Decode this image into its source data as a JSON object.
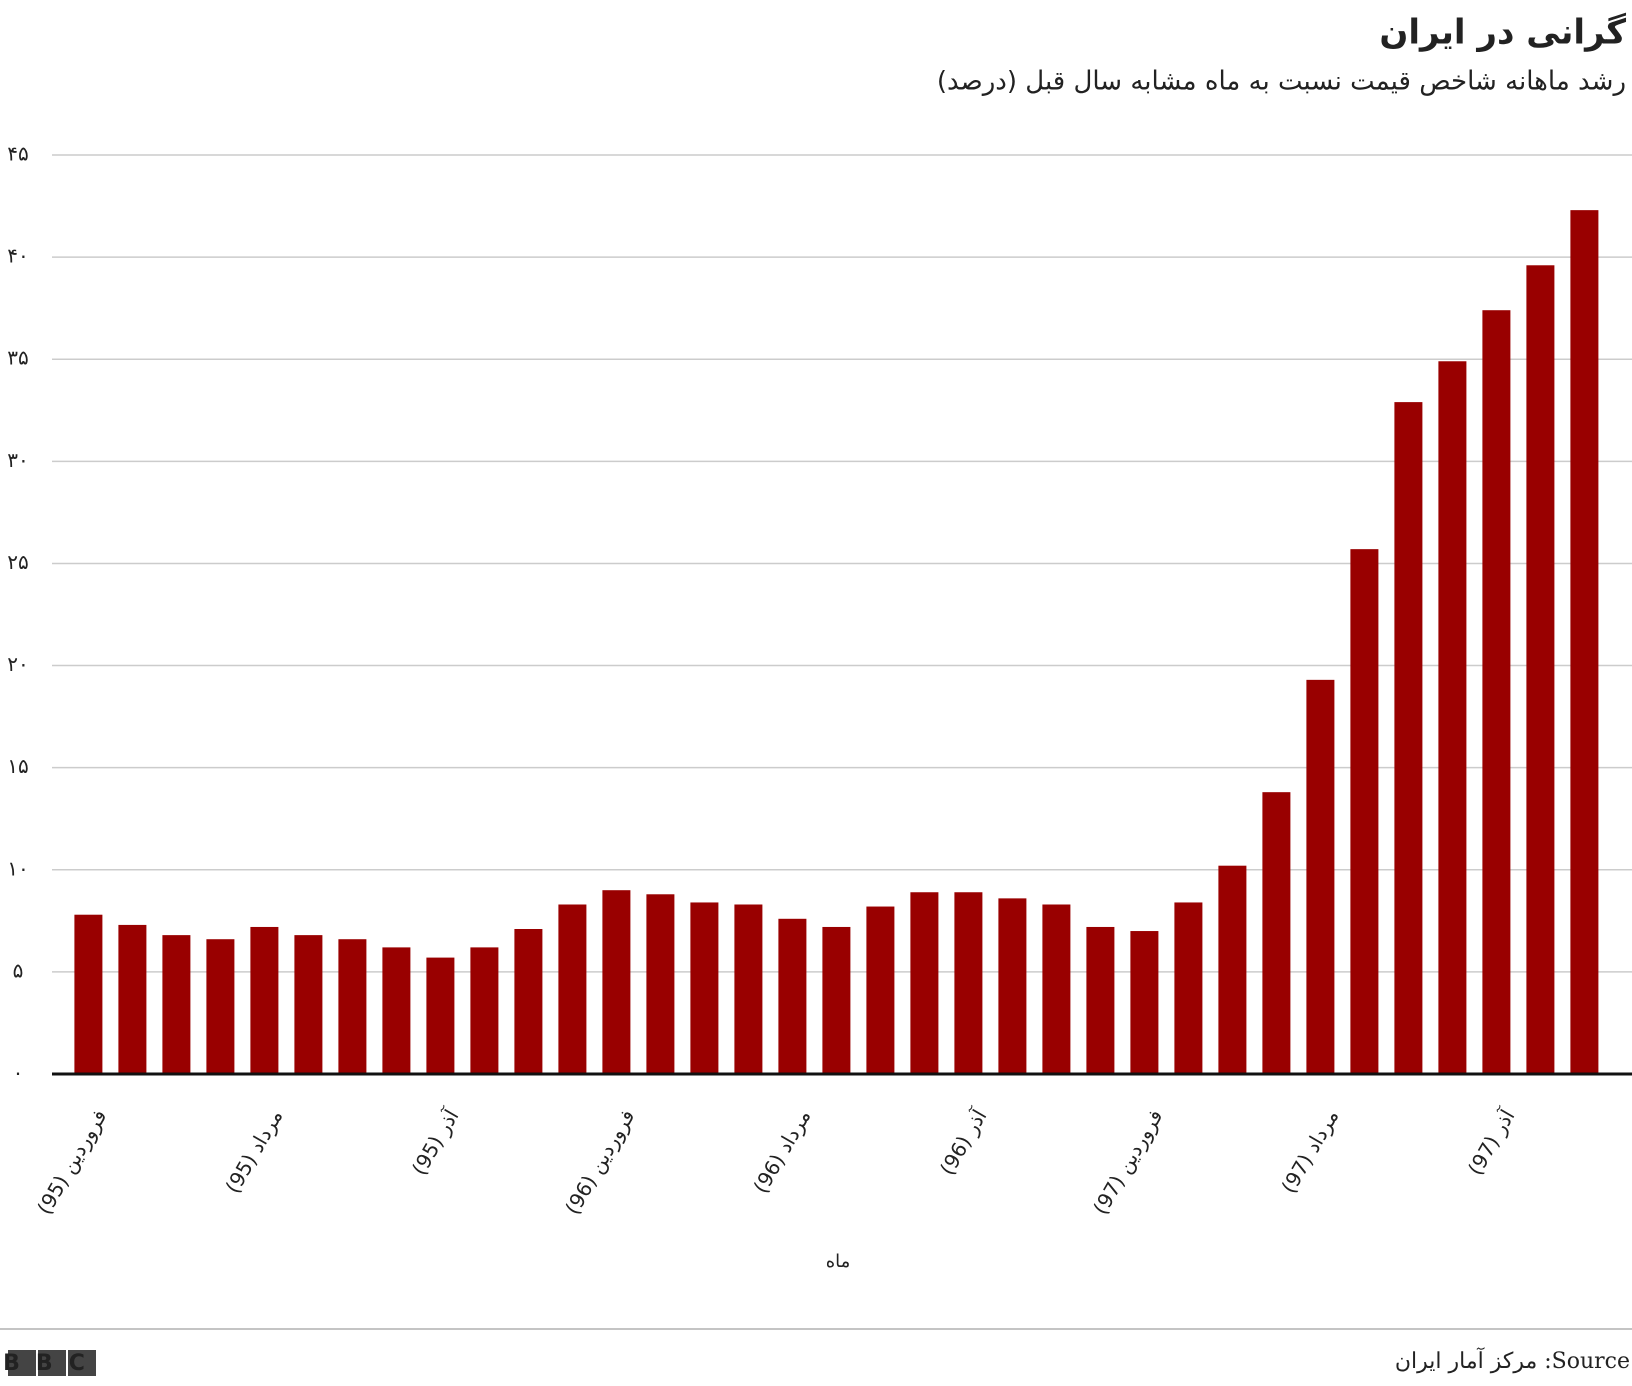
{
  "chart_data": {
    "type": "bar",
    "title": "گرانی در ایران",
    "subtitle": "رشد ماهانه شاخص قیمت نسبت به ماه مشابه سال قبل (درصد)",
    "x_label": "ماه",
    "categories": [
      "فروردین (95)",
      null,
      null,
      null,
      "مرداد (95)",
      null,
      null,
      null,
      "آذر (95)",
      null,
      null,
      null,
      "فروردین (96)",
      null,
      null,
      null,
      "مرداد (96)",
      null,
      null,
      null,
      "آذر (96)",
      null,
      null,
      null,
      "فروردین (97)",
      null,
      null,
      null,
      "مرداد (97)",
      null,
      null,
      null,
      "آذر (97)",
      null,
      null
    ],
    "values": [
      7.8,
      7.3,
      6.8,
      6.6,
      7.2,
      6.8,
      6.6,
      6.2,
      5.7,
      6.2,
      7.1,
      8.3,
      9.0,
      8.8,
      8.4,
      8.3,
      7.6,
      7.2,
      8.2,
      8.9,
      8.9,
      8.6,
      8.3,
      7.2,
      7.0,
      8.4,
      10.2,
      13.8,
      19.3,
      25.7,
      32.9,
      34.9,
      37.4,
      39.6,
      42.3
    ],
    "color": "#990000",
    "ylim": [
      0,
      45
    ],
    "yticks": [
      {
        "value": 0,
        "label": "۰"
      },
      {
        "value": 5,
        "label": "۵"
      },
      {
        "value": 10,
        "label": "۱۰"
      },
      {
        "value": 15,
        "label": "۱۵"
      },
      {
        "value": 20,
        "label": "۲۰"
      },
      {
        "value": 25,
        "label": "۲۵"
      },
      {
        "value": 30,
        "label": "۳۰"
      },
      {
        "value": 35,
        "label": "۳۵"
      },
      {
        "value": 40,
        "label": "۴۰"
      },
      {
        "value": 45,
        "label": "۴۵"
      }
    ],
    "grid": true,
    "source": "Source: مرکز آمار ایران",
    "logo": "BBC"
  }
}
